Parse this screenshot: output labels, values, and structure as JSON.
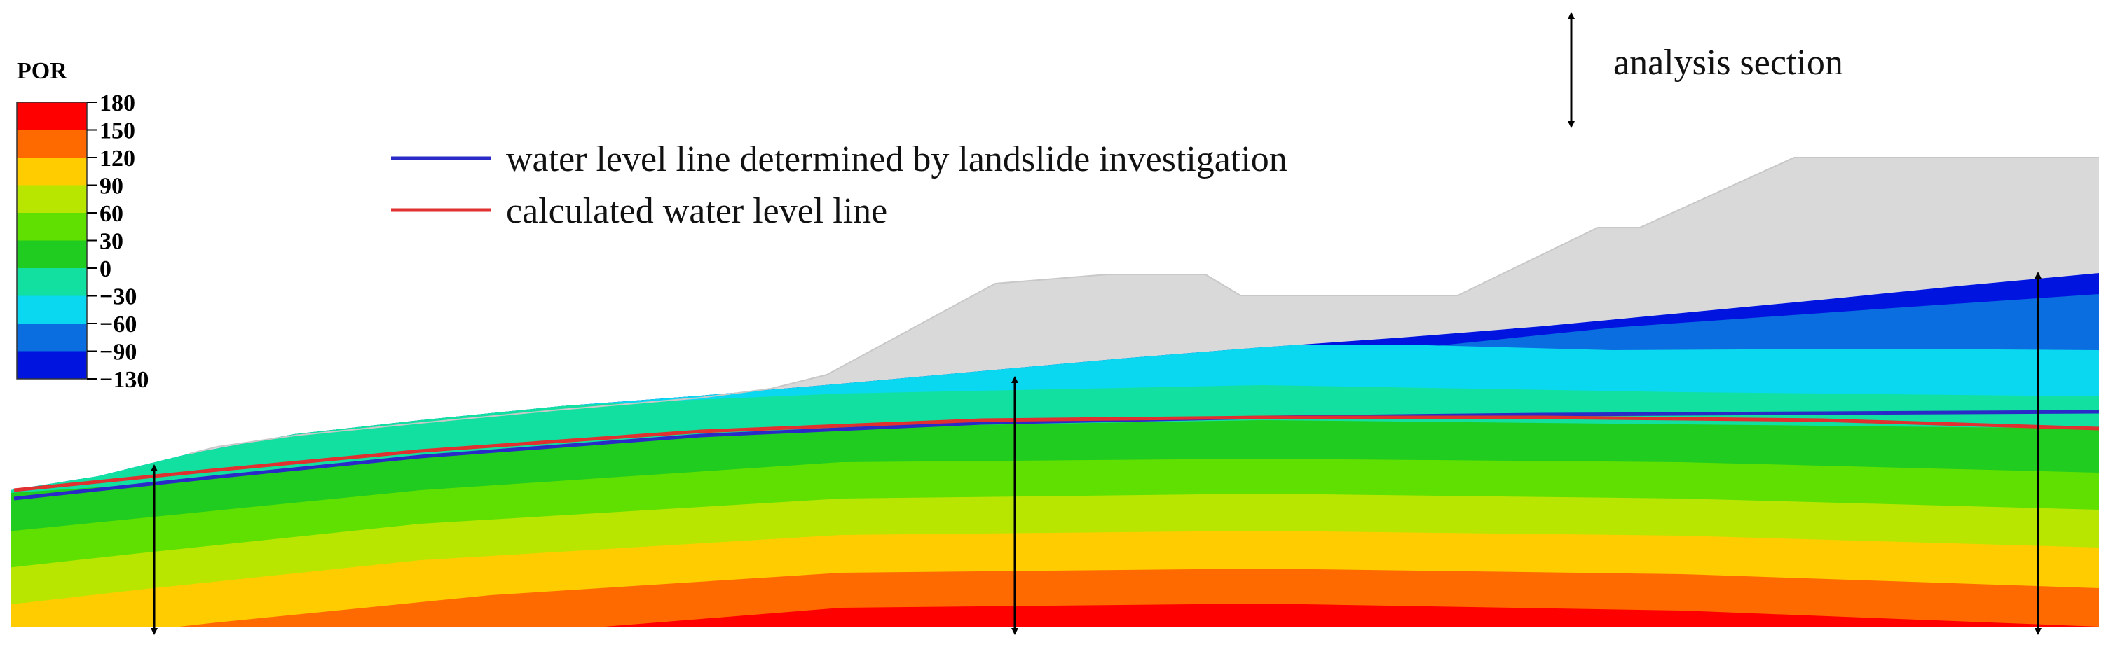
{
  "legend": {
    "title": "POR",
    "ticks": [
      "180",
      "150",
      "120",
      "90",
      "60",
      "30",
      "0",
      "−30",
      "−60",
      "−90",
      "−130"
    ],
    "colors": [
      "#ff0000",
      "#ff6a00",
      "#ffcc00",
      "#b8e600",
      "#5fe000",
      "#1fcc1f",
      "#12e0a0",
      "#0ad8f0",
      "#0a6ee0",
      "#0014e0"
    ]
  },
  "annotations": {
    "analysis_section": "analysis section",
    "investigation_line": "water level line determined by landslide investigation",
    "calculated_line": "calculated water level line"
  },
  "colors": {
    "investigation_line": "#2a2ac8",
    "calculated_line": "#e03030",
    "unsaturated_zone": "#d9d9d9",
    "arrow": "#000000"
  }
}
